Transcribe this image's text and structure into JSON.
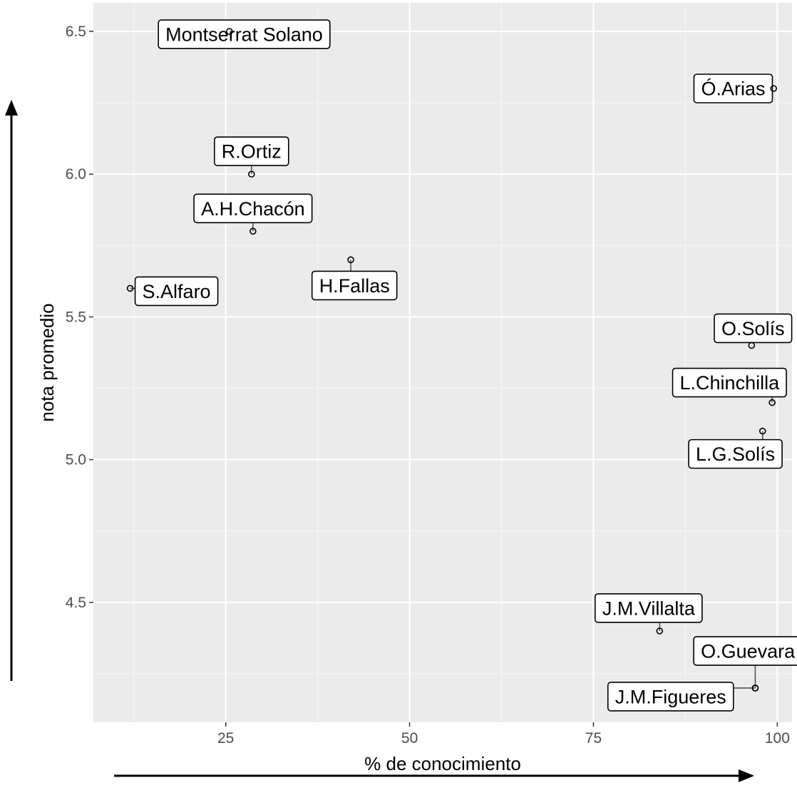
{
  "chart_data": {
    "type": "scatter",
    "title": "",
    "xlabel": "% de conocimiento",
    "ylabel": "nota promedio",
    "xlim": [
      7,
      102
    ],
    "ylim": [
      4.08,
      6.6
    ],
    "x_ticks": [
      25,
      50,
      75,
      100
    ],
    "x_tick_labels": [
      "25",
      "50",
      "75",
      "100"
    ],
    "y_ticks": [
      4.5,
      5.0,
      5.5,
      6.0,
      6.5
    ],
    "y_tick_labels": [
      "4.5",
      "5.0",
      "5.5",
      "6.0",
      "6.5"
    ],
    "grid": true,
    "legend": "none",
    "points": [
      {
        "label": "Montserrat Solano",
        "x": 25.5,
        "y": 6.5,
        "label_x": 27.5,
        "label_y": 6.49
      },
      {
        "label": "Ó.Arias",
        "x": 99.5,
        "y": 6.3,
        "label_x": 94.0,
        "label_y": 6.3
      },
      {
        "label": "R.Ortiz",
        "x": 28.5,
        "y": 6.0,
        "label_x": 28.5,
        "label_y": 6.08
      },
      {
        "label": "A.H.Chacón",
        "x": 28.7,
        "y": 5.8,
        "label_x": 28.7,
        "label_y": 5.88
      },
      {
        "label": "H.Fallas",
        "x": 42.0,
        "y": 5.7,
        "label_x": 42.5,
        "label_y": 5.61
      },
      {
        "label": "S.Alfaro",
        "x": 12.0,
        "y": 5.6,
        "label_x": 18.3,
        "label_y": 5.59
      },
      {
        "label": "O.Solís",
        "x": 96.5,
        "y": 5.4,
        "label_x": 96.7,
        "label_y": 5.46
      },
      {
        "label": "L.Chinchilla",
        "x": 99.3,
        "y": 5.2,
        "label_x": 93.5,
        "label_y": 5.27
      },
      {
        "label": "L.G.Solís",
        "x": 98.0,
        "y": 5.1,
        "label_x": 94.3,
        "label_y": 5.02
      },
      {
        "label": "J.M.Villalta",
        "x": 84.0,
        "y": 4.4,
        "label_x": 82.5,
        "label_y": 4.48
      },
      {
        "label": "O.Guevara",
        "x": 97.0,
        "y": 4.2,
        "label_x": 96.0,
        "label_y": 4.33
      },
      {
        "label": "J.M.Figueres",
        "x": 97.0,
        "y": 4.2,
        "label_x": 85.5,
        "label_y": 4.17
      }
    ],
    "axis_arrows": {
      "x": "right",
      "y": "up"
    }
  }
}
